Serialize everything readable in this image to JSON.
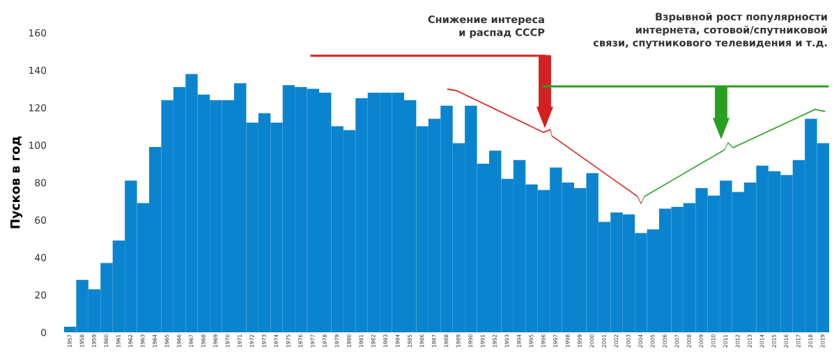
{
  "chart_data": {
    "type": "bar",
    "ylabel": "Пусков в год",
    "categories": [
      "1957",
      "1958",
      "1959",
      "1960",
      "1961",
      "1962",
      "1963",
      "1964",
      "1965",
      "1966",
      "1967",
      "1968",
      "1969",
      "1970",
      "1971",
      "1972",
      "1973",
      "1974",
      "1975",
      "1976",
      "1977",
      "1978",
      "1979",
      "1980",
      "1981",
      "1982",
      "1983",
      "1984",
      "1985",
      "1986",
      "1987",
      "1988",
      "1989",
      "1990",
      "1991",
      "1992",
      "1993",
      "1994",
      "1995",
      "1996",
      "1997",
      "1998",
      "1999",
      "2000",
      "2001",
      "2002",
      "2003",
      "2004",
      "2005",
      "2006",
      "2007",
      "2008",
      "2009",
      "2010",
      "2011",
      "2012",
      "2013",
      "2014",
      "2015",
      "2016",
      "2017",
      "2018",
      "2019"
    ],
    "values": [
      3,
      28,
      23,
      37,
      49,
      81,
      69,
      99,
      124,
      131,
      138,
      127,
      124,
      124,
      133,
      112,
      117,
      112,
      132,
      131,
      130,
      128,
      110,
      108,
      125,
      128,
      128,
      128,
      124,
      110,
      114,
      121,
      101,
      121,
      90,
      97,
      82,
      92,
      79,
      76,
      88,
      80,
      77,
      85,
      59,
      64,
      63,
      53,
      55,
      66,
      67,
      69,
      77,
      73,
      81,
      75,
      80,
      89,
      86,
      84,
      92,
      114,
      101
    ],
    "color": "#0a84cf",
    "ylim": [
      0,
      160
    ],
    "yticks": [
      0,
      20,
      40,
      60,
      80,
      100,
      120,
      140,
      160
    ],
    "grid": false,
    "annotations": [
      "Снижение интереса\nи распад СССР",
      "Взрывной рост популярности\nинтернета, сотовой/спутниковой\nсвязи, спутникового телевидения и т.д."
    ]
  }
}
